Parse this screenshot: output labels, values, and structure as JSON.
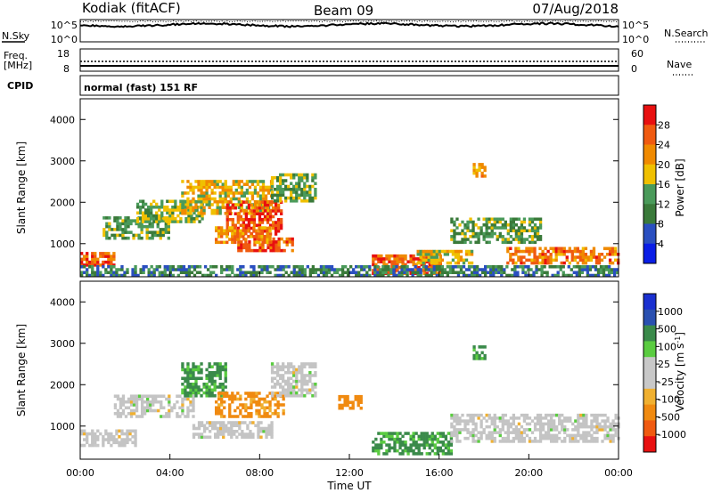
{
  "header": {
    "station": "Kodiak (fitACF)",
    "beam": "Beam 09",
    "date": "07/Aug/2018"
  },
  "panels": {
    "noise": {
      "left_label": "N.Sky",
      "right_label": "N.Search",
      "left_ticks": [
        "10^5",
        "10^0"
      ],
      "right_ticks": [
        "10^5",
        "10^0"
      ]
    },
    "freq": {
      "left_label_1": "Freq.",
      "left_label_2": "[MHz]",
      "right_label": "Nave",
      "left_ticks": [
        "18",
        "8"
      ],
      "right_ticks": [
        "60",
        "0"
      ]
    },
    "cpid": {
      "label": "CPID",
      "text": "normal (fast) 151 RF"
    }
  },
  "axes": {
    "ylabel": "Slant Range [km]",
    "xlabel": "Time UT",
    "x_ticks": [
      "00:00",
      "04:00",
      "08:00",
      "12:00",
      "16:00",
      "20:00",
      "00:00"
    ],
    "y_ticks": [
      "1000",
      "2000",
      "3000",
      "4000"
    ]
  },
  "colors": {
    "power_scale": [
      "#0a1ee6",
      "#2a4fc0",
      "#3a7a3a",
      "#4a9a5a",
      "#f0c000",
      "#f08a00",
      "#f05a10",
      "#e81010"
    ],
    "velocity_scale": [
      "#e81010",
      "#f05a10",
      "#f08a10",
      "#f0b030",
      "#c8c8c8",
      "#c8c8c8",
      "#5acc40",
      "#3a8a4a",
      "#2a50b0",
      "#1a30d0"
    ],
    "scatter_gray": "#c4c4c4"
  },
  "chart_data": [
    {
      "type": "heatmap",
      "name": "power",
      "colorbar_label": "Power [dB]",
      "colorbar_ticks": [
        "4",
        "8",
        "12",
        "16",
        "20",
        "24",
        "28"
      ],
      "colorbar_range": [
        0,
        32
      ],
      "xlim": [
        0,
        24
      ],
      "ylim": [
        200,
        4500
      ],
      "regions": [
        {
          "t0": 0.0,
          "t1": 1.5,
          "r0": 450,
          "r1": 800,
          "power": 26
        },
        {
          "t0": 1.0,
          "t1": 4.0,
          "r0": 1100,
          "r1": 1600,
          "power": 13
        },
        {
          "t0": 2.5,
          "t1": 5.5,
          "r0": 1500,
          "r1": 2000,
          "power": 15
        },
        {
          "t0": 4.5,
          "t1": 8.5,
          "r0": 1700,
          "r1": 2500,
          "power": 19
        },
        {
          "t0": 6.5,
          "t1": 9.0,
          "r0": 1200,
          "r1": 2000,
          "power": 27
        },
        {
          "t0": 7.0,
          "t1": 9.5,
          "r0": 800,
          "r1": 1100,
          "power": 27
        },
        {
          "t0": 6.0,
          "t1": 8.5,
          "r0": 1000,
          "r1": 1400,
          "power": 22
        },
        {
          "t0": 8.5,
          "t1": 10.5,
          "r0": 2000,
          "r1": 2700,
          "power": 14
        },
        {
          "t0": 13.0,
          "t1": 16.0,
          "r0": 250,
          "r1": 700,
          "power": 25
        },
        {
          "t0": 15.0,
          "t1": 17.5,
          "r0": 500,
          "r1": 800,
          "power": 18
        },
        {
          "t0": 16.5,
          "t1": 20.5,
          "r0": 1000,
          "r1": 1600,
          "power": 13
        },
        {
          "t0": 19.0,
          "t1": 24.0,
          "r0": 500,
          "r1": 900,
          "power": 24
        },
        {
          "t0": 17.5,
          "t1": 18.0,
          "r0": 2600,
          "r1": 2900,
          "power": 20
        },
        {
          "t0": 0.0,
          "t1": 24.0,
          "r0": 200,
          "r1": 450,
          "power": 10
        }
      ]
    },
    {
      "type": "heatmap",
      "name": "velocity",
      "colorbar_label": "Velocity [m s^-1]",
      "colorbar_ticks": [
        "1000",
        "500",
        "100",
        "25",
        "-25",
        "-100",
        "-500",
        "-1000"
      ],
      "colorbar_range": [
        -1250,
        1250
      ],
      "xlim": [
        0,
        24
      ],
      "ylim": [
        200,
        4500
      ],
      "regions": [
        {
          "t0": 0.0,
          "t1": 2.5,
          "r0": 500,
          "r1": 900,
          "velocity": 0,
          "ground": true
        },
        {
          "t0": 1.5,
          "t1": 5.0,
          "r0": 1200,
          "r1": 1700,
          "velocity": 0,
          "ground": true
        },
        {
          "t0": 4.5,
          "t1": 6.5,
          "r0": 1700,
          "r1": 2500,
          "velocity": 150
        },
        {
          "t0": 6.0,
          "t1": 9.0,
          "r0": 1200,
          "r1": 1800,
          "velocity": -150
        },
        {
          "t0": 5.0,
          "t1": 8.5,
          "r0": 700,
          "r1": 1100,
          "velocity": 0,
          "ground": true
        },
        {
          "t0": 8.5,
          "t1": 10.5,
          "r0": 1700,
          "r1": 2500,
          "velocity": 0,
          "ground": true
        },
        {
          "t0": 11.5,
          "t1": 12.5,
          "r0": 1400,
          "r1": 1700,
          "velocity": -200
        },
        {
          "t0": 13.0,
          "t1": 16.5,
          "r0": 300,
          "r1": 800,
          "velocity": 150
        },
        {
          "t0": 16.5,
          "t1": 24.0,
          "r0": 600,
          "r1": 1300,
          "velocity": 0,
          "ground": true
        },
        {
          "t0": 17.5,
          "t1": 18.0,
          "r0": 2600,
          "r1": 2900,
          "velocity": 150
        }
      ]
    }
  ]
}
